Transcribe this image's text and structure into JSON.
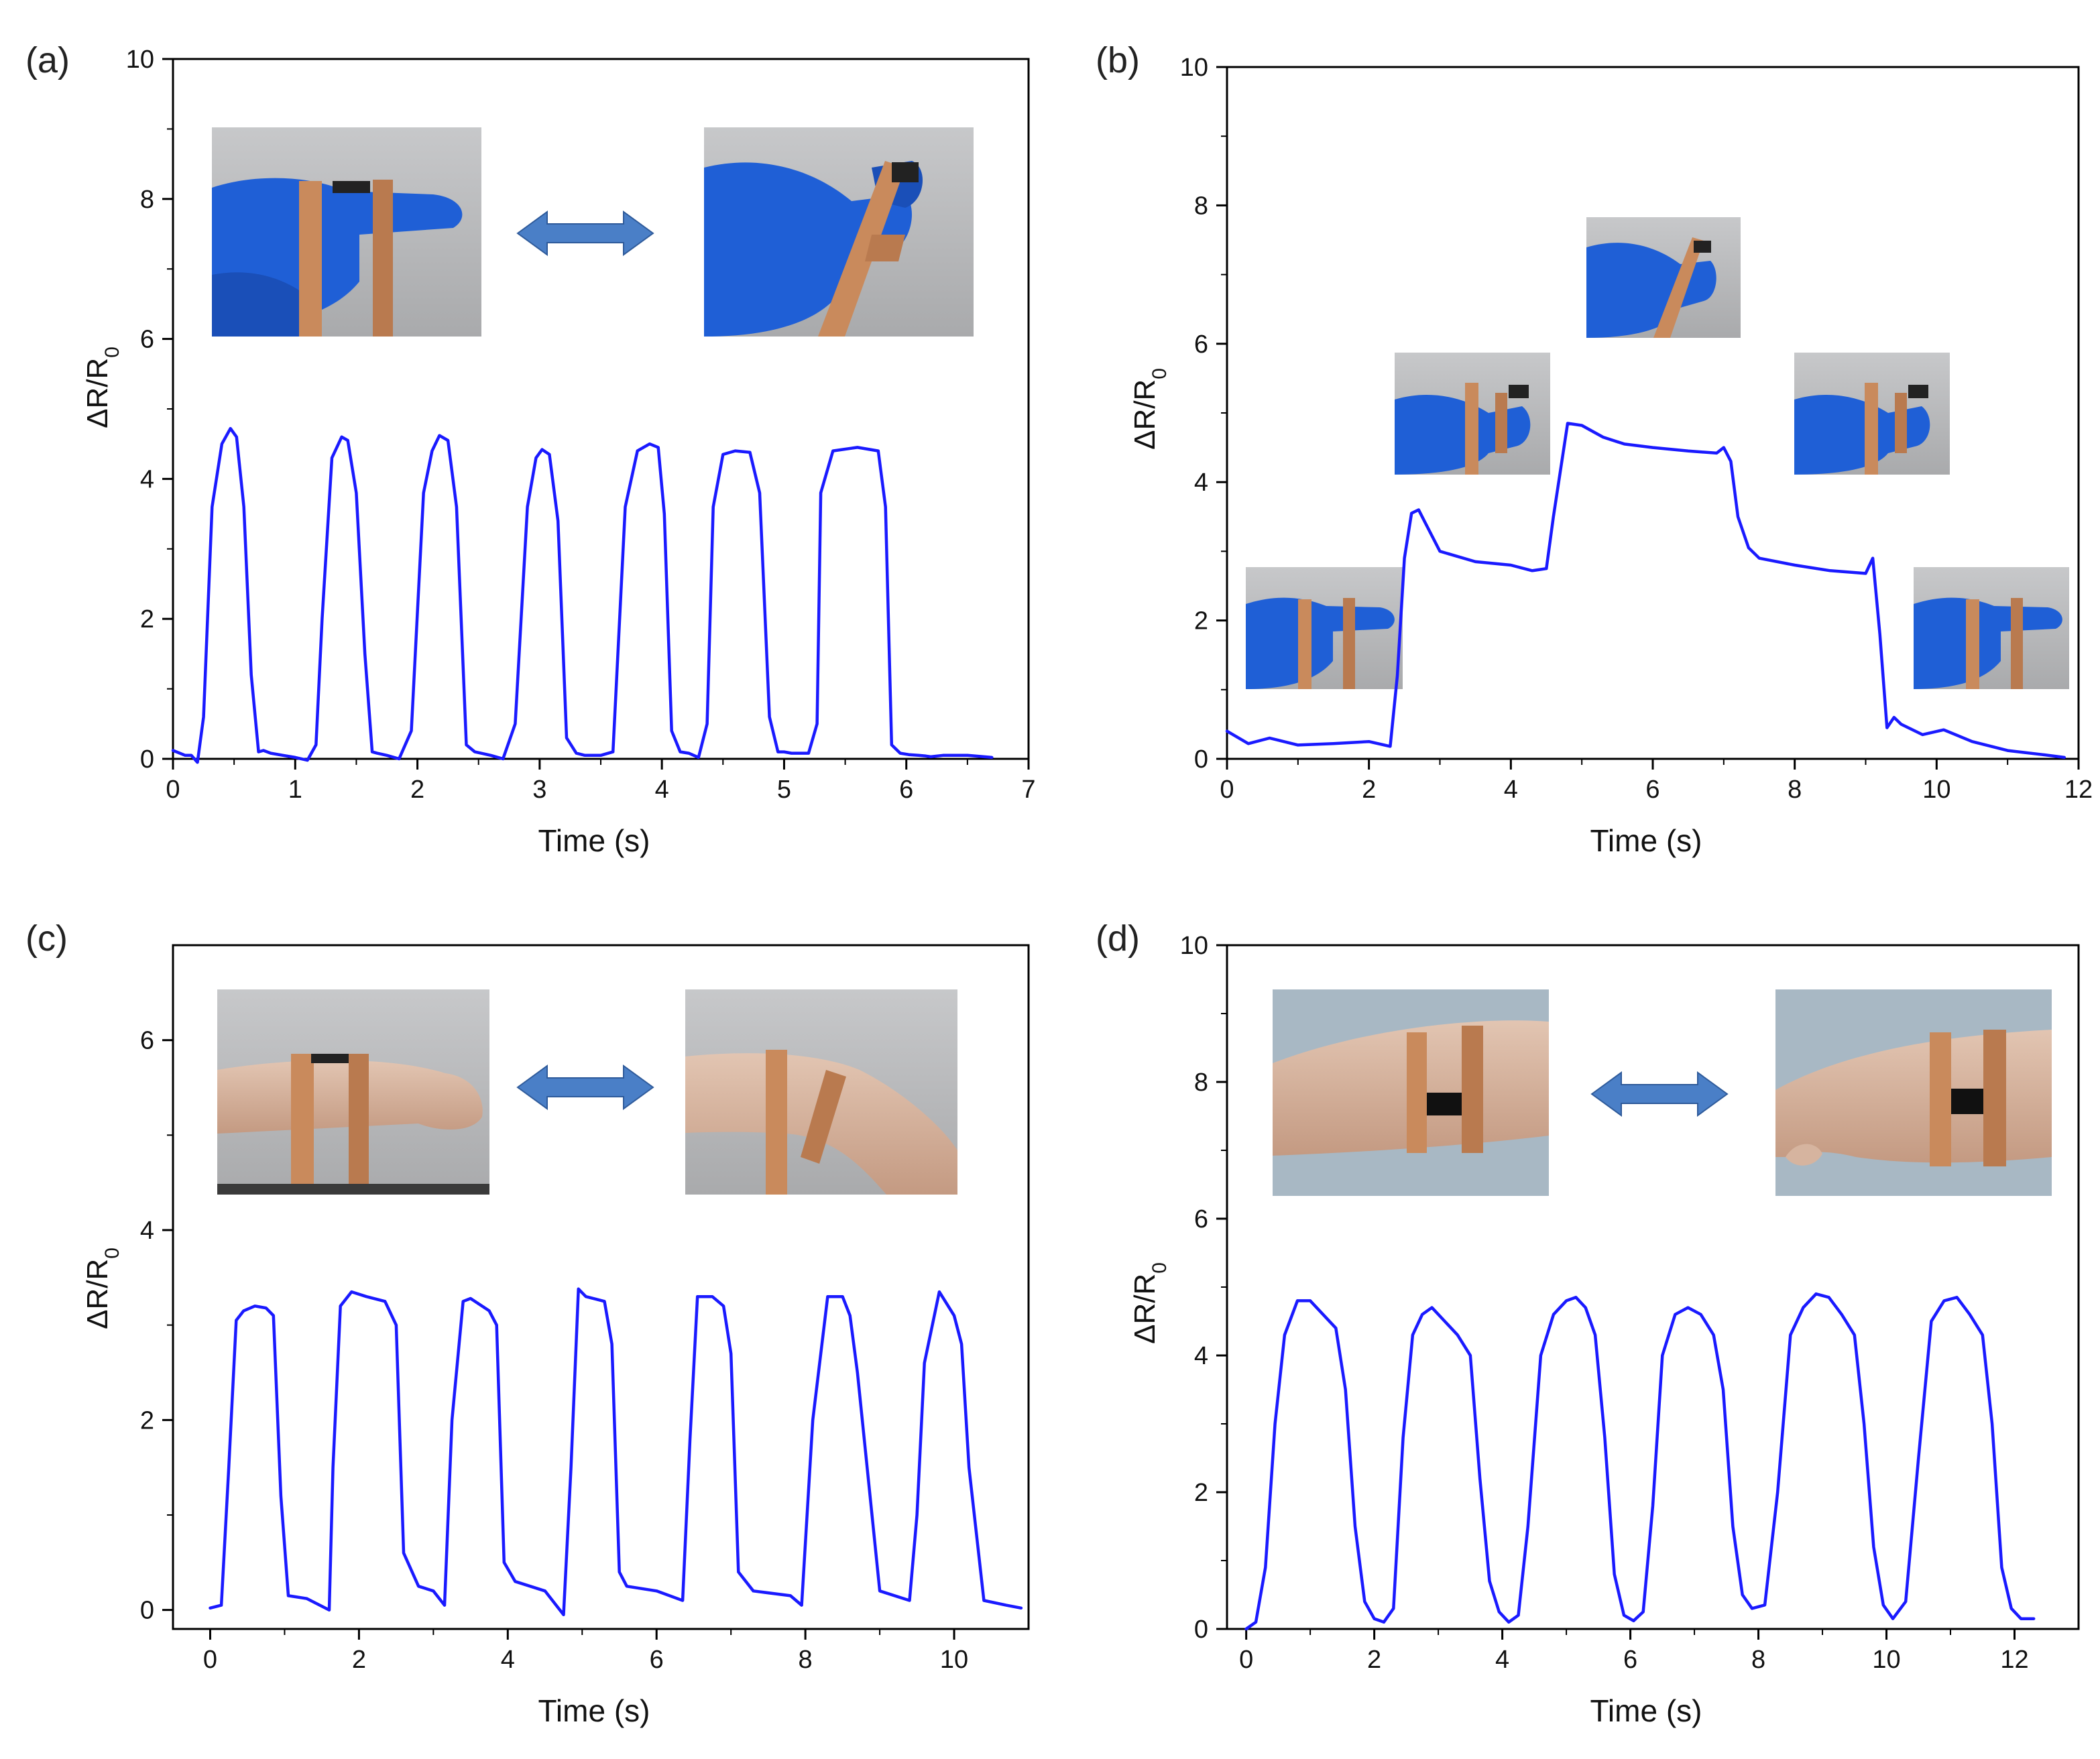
{
  "figure": {
    "panel_labels": [
      "(a)",
      "(b)",
      "(c)",
      "(d)"
    ]
  },
  "colors": {
    "line": "#1a1aff",
    "axis": "#000000",
    "photo_bg": "#bcbdbf",
    "glove": "#1f5fd6",
    "copper": "#c98a5c",
    "skin": "#d6b49f",
    "arrow": "#4a7fc7"
  },
  "chart_data": [
    {
      "type": "line",
      "panel": "(a)",
      "xlabel": "Time (s)",
      "ylabel": "ΔR/R0",
      "xlim": [
        0,
        7
      ],
      "ylim": [
        0,
        10
      ],
      "xticks": [
        0,
        1,
        2,
        3,
        4,
        5,
        6,
        7
      ],
      "yticks": [
        0,
        2,
        4,
        6,
        8,
        10
      ],
      "insets": [
        "finger-straight",
        "finger-bent"
      ],
      "arrow": "bidirectional",
      "x": [
        0,
        0.1,
        0.15,
        0.2,
        0.25,
        0.32,
        0.4,
        0.47,
        0.52,
        0.58,
        0.64,
        0.7,
        0.74,
        0.8,
        0.9,
        1.0,
        1.1,
        1.17,
        1.22,
        1.3,
        1.38,
        1.43,
        1.5,
        1.57,
        1.63,
        1.67,
        1.75,
        1.85,
        1.95,
        2.05,
        2.12,
        2.18,
        2.25,
        2.32,
        2.4,
        2.47,
        2.52,
        2.6,
        2.7,
        2.8,
        2.9,
        2.97,
        3.02,
        3.08,
        3.15,
        3.22,
        3.3,
        3.37,
        3.42,
        3.5,
        3.6,
        3.7,
        3.8,
        3.9,
        3.97,
        4.02,
        4.08,
        4.15,
        4.22,
        4.3,
        4.37,
        4.42,
        4.5,
        4.6,
        4.72,
        4.8,
        4.88,
        4.95,
        5.0,
        5.06,
        5.13,
        5.2,
        5.27,
        5.3,
        5.4,
        5.6,
        5.77,
        5.83,
        5.88,
        5.95,
        6.02,
        6.1,
        6.16,
        6.2,
        6.3,
        6.5,
        6.7
      ],
      "y": [
        0.12,
        0.05,
        0.05,
        -0.05,
        0.6,
        3.6,
        4.5,
        4.72,
        4.6,
        3.6,
        1.2,
        0.1,
        0.12,
        0.08,
        0.05,
        0.02,
        -0.02,
        0.2,
        2.0,
        4.3,
        4.6,
        4.55,
        3.8,
        1.5,
        0.1,
        0.08,
        0.05,
        0.0,
        0.4,
        3.8,
        4.4,
        4.62,
        4.55,
        3.6,
        0.2,
        0.1,
        0.08,
        0.05,
        0.0,
        0.5,
        3.6,
        4.3,
        4.42,
        4.35,
        3.4,
        0.3,
        0.08,
        0.05,
        0.05,
        0.05,
        0.1,
        3.6,
        4.4,
        4.5,
        4.45,
        3.5,
        0.4,
        0.1,
        0.08,
        0.02,
        0.5,
        3.6,
        4.35,
        4.4,
        4.38,
        3.8,
        0.6,
        0.1,
        0.1,
        0.08,
        0.08,
        0.08,
        0.5,
        3.8,
        4.4,
        4.45,
        4.4,
        3.6,
        0.2,
        0.08,
        0.06,
        0.05,
        0.04,
        0.03,
        0.05,
        0.05,
        0.02
      ]
    },
    {
      "type": "line",
      "panel": "(b)",
      "xlabel": "Time (s)",
      "ylabel": "ΔR/R0",
      "xlim": [
        0,
        12
      ],
      "ylim": [
        0,
        10
      ],
      "xticks": [
        0,
        2,
        4,
        6,
        8,
        10,
        12
      ],
      "yticks": [
        0,
        2,
        4,
        6,
        8,
        10
      ],
      "insets": [
        "finger-straight",
        "finger-half-bent",
        "finger-fully-bent",
        "finger-half-bent",
        "finger-straight"
      ],
      "x": [
        0,
        0.3,
        0.6,
        1.0,
        1.5,
        2.0,
        2.3,
        2.4,
        2.5,
        2.6,
        2.7,
        2.8,
        3.0,
        3.5,
        4.0,
        4.3,
        4.5,
        4.6,
        4.8,
        5.0,
        5.3,
        5.6,
        6.0,
        6.5,
        6.9,
        7.0,
        7.1,
        7.2,
        7.35,
        7.5,
        8.0,
        8.5,
        9.0,
        9.1,
        9.2,
        9.3,
        9.4,
        9.5,
        9.8,
        10.1,
        10.5,
        11.0,
        11.5,
        11.8
      ],
      "y": [
        0.4,
        0.22,
        0.3,
        0.2,
        0.22,
        0.25,
        0.18,
        1.2,
        2.9,
        3.55,
        3.6,
        3.4,
        3.0,
        2.85,
        2.8,
        2.72,
        2.75,
        3.5,
        4.85,
        4.82,
        4.65,
        4.55,
        4.5,
        4.45,
        4.42,
        4.5,
        4.3,
        3.5,
        3.05,
        2.9,
        2.8,
        2.72,
        2.68,
        2.9,
        1.8,
        0.45,
        0.6,
        0.5,
        0.35,
        0.42,
        0.25,
        0.12,
        0.06,
        0.02
      ]
    },
    {
      "type": "line",
      "panel": "(c)",
      "xlabel": "Time (s)",
      "ylabel": "ΔR/R0",
      "xlim": [
        -0.5,
        11
      ],
      "ylim": [
        -0.2,
        7
      ],
      "xticks": [
        0,
        2,
        4,
        6,
        8,
        10
      ],
      "yticks": [
        0,
        2,
        4,
        6
      ],
      "insets": [
        "wrist-straight",
        "wrist-bent"
      ],
      "arrow": "bidirectional",
      "x": [
        0,
        0.15,
        0.25,
        0.35,
        0.45,
        0.6,
        0.75,
        0.85,
        0.95,
        1.05,
        1.3,
        1.6,
        1.65,
        1.75,
        1.9,
        2.1,
        2.35,
        2.5,
        2.6,
        2.8,
        3.0,
        3.15,
        3.25,
        3.4,
        3.5,
        3.75,
        3.85,
        3.95,
        4.1,
        4.5,
        4.75,
        4.85,
        4.95,
        5.05,
        5.3,
        5.4,
        5.5,
        5.6,
        6.0,
        6.35,
        6.45,
        6.55,
        6.75,
        6.9,
        7.0,
        7.1,
        7.3,
        7.8,
        7.95,
        8.1,
        8.3,
        8.5,
        8.6,
        8.7,
        9.0,
        9.4,
        9.5,
        9.6,
        9.8,
        10.0,
        10.1,
        10.2,
        10.4,
        10.7,
        10.9
      ],
      "y": [
        0.02,
        0.05,
        1.5,
        3.05,
        3.15,
        3.2,
        3.18,
        3.1,
        1.2,
        0.15,
        0.12,
        0.0,
        1.5,
        3.2,
        3.35,
        3.3,
        3.25,
        3.0,
        0.6,
        0.25,
        0.2,
        0.05,
        2.0,
        3.25,
        3.28,
        3.15,
        3.0,
        0.5,
        0.3,
        0.2,
        -0.05,
        1.5,
        3.38,
        3.3,
        3.25,
        2.8,
        0.4,
        0.25,
        0.2,
        0.1,
        1.8,
        3.3,
        3.3,
        3.2,
        2.7,
        0.4,
        0.2,
        0.15,
        0.05,
        2.0,
        3.3,
        3.3,
        3.1,
        2.5,
        0.2,
        0.1,
        1.0,
        2.6,
        3.35,
        3.1,
        2.8,
        1.5,
        0.1,
        0.05,
        0.02
      ]
    },
    {
      "type": "line",
      "panel": "(d)",
      "xlabel": "Time (s)",
      "ylabel": "ΔR/R0",
      "xlim": [
        -0.3,
        13
      ],
      "ylim": [
        0,
        10
      ],
      "xticks": [
        0,
        2,
        4,
        6,
        8,
        10,
        12
      ],
      "yticks": [
        0,
        2,
        4,
        6,
        8,
        10
      ],
      "insets": [
        "arm-straight",
        "arm-bent"
      ],
      "arrow": "bidirectional",
      "x": [
        0,
        0.15,
        0.3,
        0.45,
        0.6,
        0.8,
        1.0,
        1.2,
        1.4,
        1.55,
        1.7,
        1.85,
        2.0,
        2.15,
        2.3,
        2.45,
        2.6,
        2.75,
        2.9,
        3.1,
        3.3,
        3.5,
        3.65,
        3.8,
        3.95,
        4.1,
        4.25,
        4.4,
        4.6,
        4.8,
        5.0,
        5.15,
        5.3,
        5.45,
        5.6,
        5.75,
        5.9,
        6.05,
        6.2,
        6.35,
        6.5,
        6.7,
        6.9,
        7.1,
        7.3,
        7.45,
        7.6,
        7.75,
        7.9,
        8.1,
        8.3,
        8.5,
        8.7,
        8.9,
        9.1,
        9.3,
        9.5,
        9.65,
        9.8,
        9.95,
        10.1,
        10.3,
        10.5,
        10.7,
        10.9,
        11.1,
        11.3,
        11.5,
        11.65,
        11.8,
        11.95,
        12.1,
        12.3
      ],
      "y": [
        0.0,
        0.1,
        0.9,
        3.0,
        4.3,
        4.8,
        4.8,
        4.6,
        4.4,
        3.5,
        1.5,
        0.4,
        0.15,
        0.1,
        0.3,
        2.8,
        4.3,
        4.6,
        4.7,
        4.5,
        4.3,
        4.0,
        2.2,
        0.7,
        0.25,
        0.1,
        0.2,
        1.5,
        4.0,
        4.6,
        4.8,
        4.85,
        4.7,
        4.3,
        2.8,
        0.8,
        0.2,
        0.12,
        0.25,
        1.8,
        4.0,
        4.6,
        4.7,
        4.6,
        4.3,
        3.5,
        1.5,
        0.5,
        0.3,
        0.35,
        2.0,
        4.3,
        4.7,
        4.9,
        4.85,
        4.6,
        4.3,
        3.0,
        1.2,
        0.35,
        0.15,
        0.4,
        2.5,
        4.5,
        4.8,
        4.85,
        4.6,
        4.3,
        3.0,
        0.9,
        0.3,
        0.15,
        0.15
      ]
    }
  ]
}
